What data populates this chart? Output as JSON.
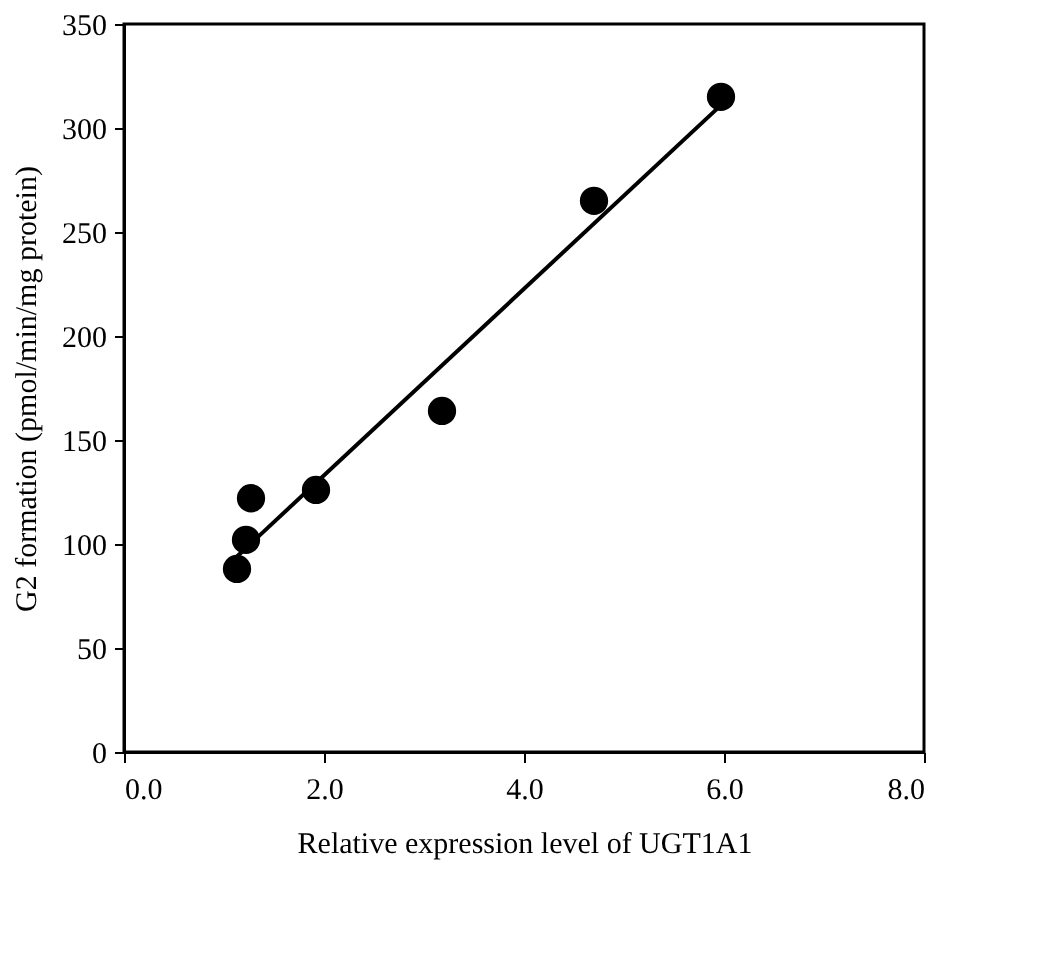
{
  "chart_data": {
    "type": "scatter",
    "xlabel": "Relative expression level of UGT1A1",
    "ylabel": "G2 formation (pmol/min/mg protein)",
    "xlim": [
      0,
      8
    ],
    "xticks": [
      {
        "value": 0,
        "label": "0.0"
      },
      {
        "value": 2,
        "label": "2.0"
      },
      {
        "value": 4,
        "label": "4.0"
      },
      {
        "value": 6,
        "label": "6.0"
      },
      {
        "value": 8,
        "label": "8.0"
      }
    ],
    "ylim": [
      0,
      350
    ],
    "yticks": [
      0,
      50,
      100,
      150,
      200,
      250,
      300,
      350
    ],
    "grid": false,
    "legend": false,
    "marker": "circle",
    "series": [
      {
        "color": "#000000",
        "x": [
          1.13,
          1.22,
          1.27,
          1.92,
          3.18,
          4.7,
          5.97
        ],
        "values": [
          88,
          102,
          122,
          126,
          164,
          265,
          315
        ]
      },
      {
        "type": "line",
        "color": "#000000",
        "x": [
          1.13,
          5.97
        ],
        "values": [
          94,
          311
        ],
        "marker": "none",
        "line_style": "solid"
      }
    ]
  }
}
